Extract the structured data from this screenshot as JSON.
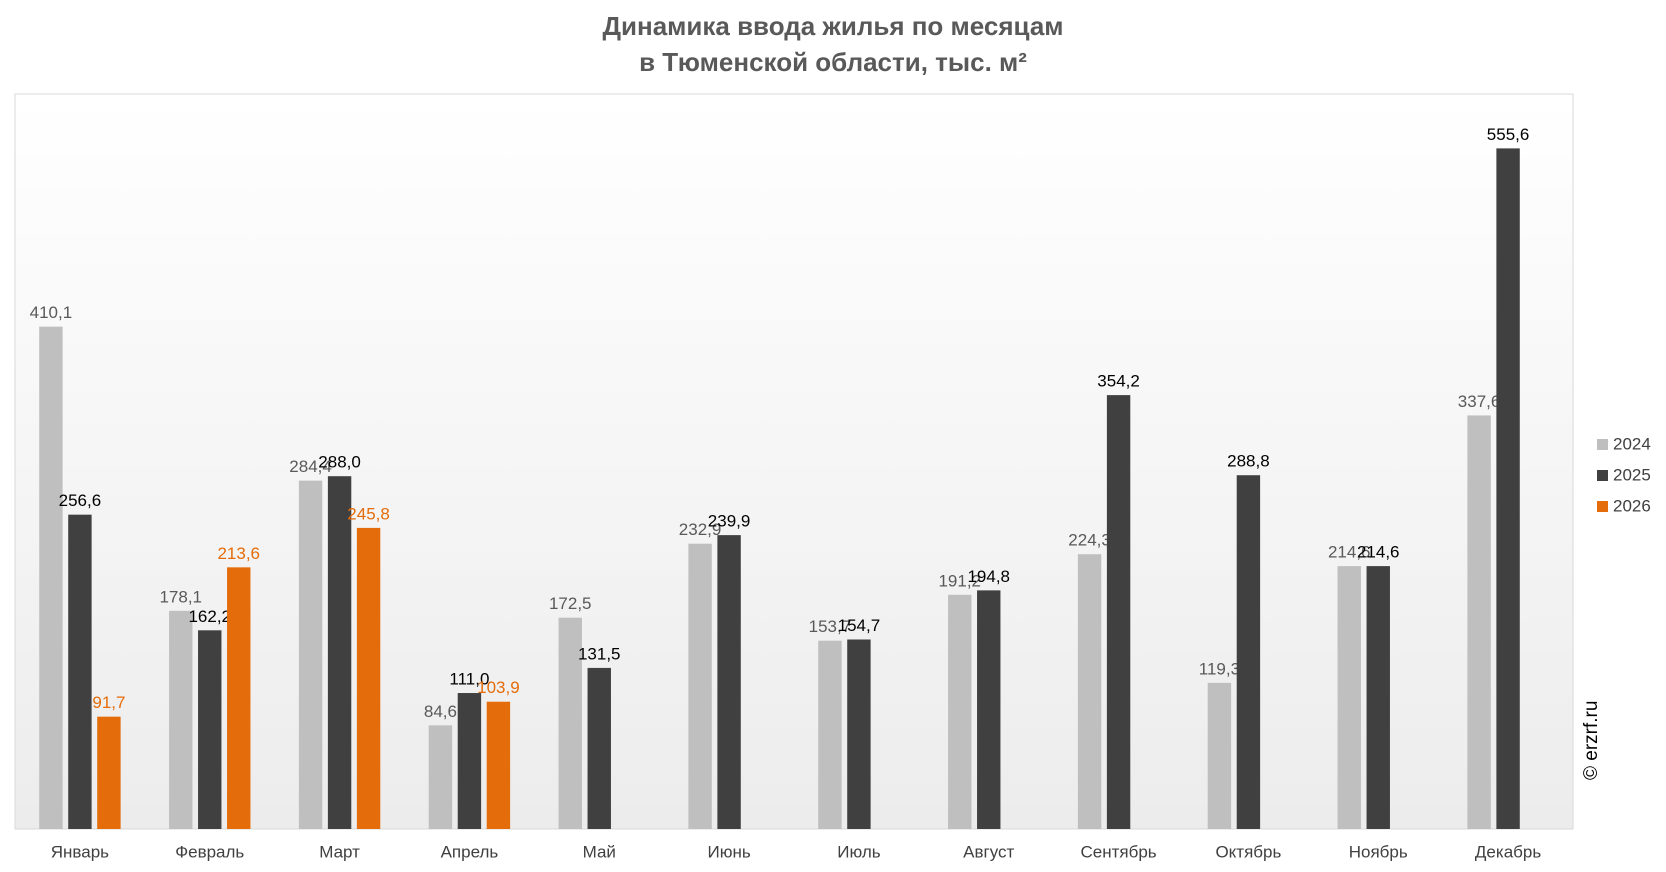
{
  "chart_data": {
    "type": "bar",
    "title": [
      "Динамика ввода жилья по месяцам",
      "в Тюменской области, тыс. м²"
    ],
    "categories": [
      "Январь",
      "Февраль",
      "Март",
      "Апрель",
      "Май",
      "Июнь",
      "Июль",
      "Август",
      "Сентябрь",
      "Октябрь",
      "Ноябрь",
      "Декабрь"
    ],
    "series": [
      {
        "name": "2024",
        "color": "#bfbfbf",
        "label_color": "#595959",
        "values": [
          410.1,
          178.1,
          284.4,
          84.6,
          172.5,
          232.9,
          153.7,
          191.2,
          224.3,
          119.3,
          214.6,
          337.6
        ],
        "value_labels": [
          "410,1",
          "178,1",
          "284,4",
          "84,6",
          "172,5",
          "232,9",
          "153,7",
          "191,2",
          "224,3",
          "119,3",
          "214,6",
          "337,6"
        ]
      },
      {
        "name": "2025",
        "color": "#404040",
        "label_color": "#000000",
        "values": [
          256.6,
          162.2,
          288.0,
          111.0,
          131.5,
          239.9,
          154.7,
          194.8,
          354.2,
          288.8,
          214.6,
          555.6
        ],
        "value_labels": [
          "256,6",
          "162,2",
          "288,0",
          "111,0",
          "131,5",
          "239,9",
          "154,7",
          "194,8",
          "354,2",
          "288,8",
          "214,6",
          "555,6"
        ]
      },
      {
        "name": "2026",
        "color": "#e46c0a",
        "label_color": "#e46c0a",
        "values": [
          91.7,
          213.6,
          245.8,
          103.9,
          null,
          null,
          null,
          null,
          null,
          null,
          null,
          null
        ],
        "value_labels": [
          "91,7",
          "213,6",
          "245,8",
          "103,9",
          null,
          null,
          null,
          null,
          null,
          null,
          null,
          null
        ]
      }
    ],
    "ylim": [
      0,
      600
    ],
    "grid": false,
    "legend": "right",
    "watermark": "© erzrf.ru"
  }
}
